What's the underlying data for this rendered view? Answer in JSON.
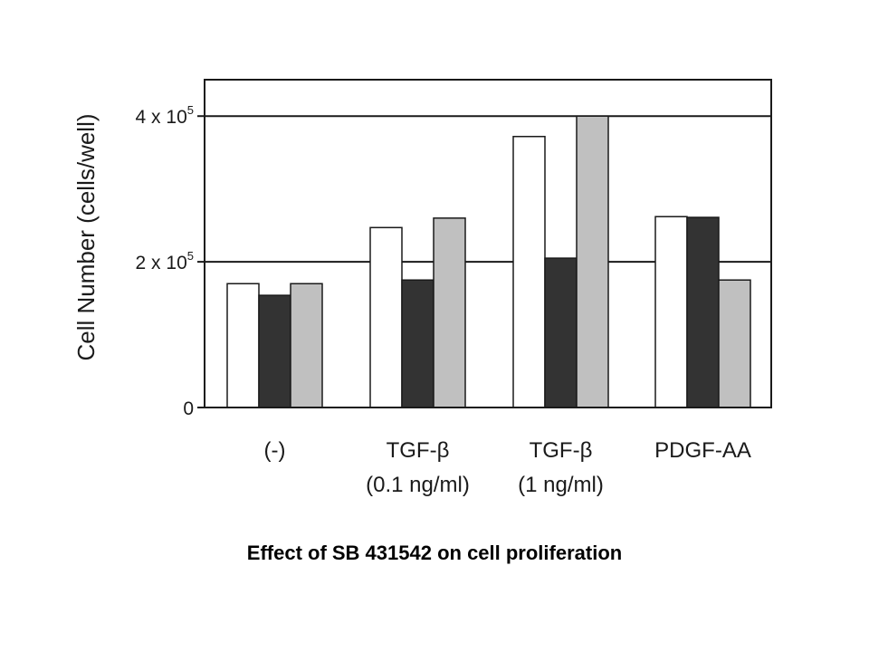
{
  "caption": "Effect of SB 431542 on cell proliferation",
  "chart_data": {
    "type": "bar",
    "title": "",
    "xlabel": "",
    "ylabel": "Cell Number (cells/well)",
    "ylim": [
      0,
      450000
    ],
    "yticks": [
      {
        "value": 0,
        "base": "0",
        "exp": ""
      },
      {
        "value": 200000,
        "base": "2 x 10",
        "exp": "5"
      },
      {
        "value": 400000,
        "base": "4 x 10",
        "exp": "5"
      }
    ],
    "gridlines_at": [
      200000,
      400000
    ],
    "categories": [
      [
        "(-)"
      ],
      [
        "TGF-β",
        "(0.1 ng/ml)"
      ],
      [
        "TGF-β",
        "(1 ng/ml)"
      ],
      [
        "PDGF-AA"
      ]
    ],
    "series": [
      {
        "color": "#ffffff",
        "values": [
          170000,
          247000,
          372000,
          262000
        ]
      },
      {
        "color": "#333333",
        "values": [
          154000,
          175000,
          205000,
          261000
        ]
      },
      {
        "color": "#c0c0c0",
        "values": [
          170000,
          260000,
          400000,
          175000
        ]
      }
    ],
    "legend": "none",
    "grid": true
  }
}
